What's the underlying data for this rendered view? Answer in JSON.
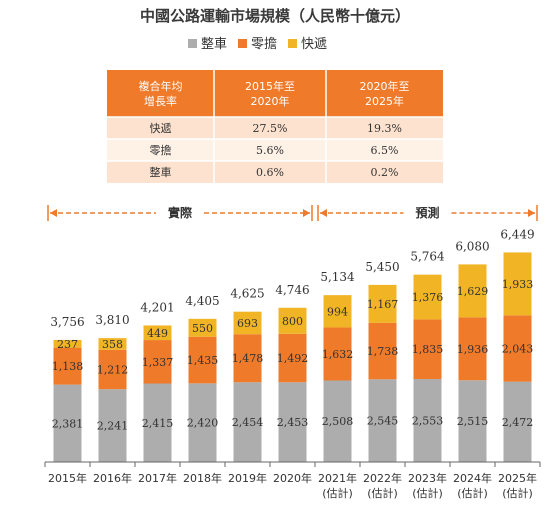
{
  "chart_data": {
    "type": "bar",
    "stacked": true,
    "title": "中國公路運輸市場規模（人民幣十億元）",
    "categories": [
      "2015年",
      "2016年",
      "2017年",
      "2018年",
      "2019年",
      "2020年",
      "2021年\n(估計)",
      "2022年\n(估計)",
      "2023年\n(估計)",
      "2024年\n(估計)",
      "2025年\n(估計)"
    ],
    "series": [
      {
        "name": "整車",
        "color": "#adadad",
        "values": [
          2381,
          2241,
          2415,
          2420,
          2454,
          2453,
          2508,
          2545,
          2553,
          2515,
          2472
        ]
      },
      {
        "name": "零擔",
        "color": "#ee7a2a",
        "values": [
          1138,
          1212,
          1337,
          1435,
          1478,
          1492,
          1632,
          1738,
          1835,
          1936,
          2043
        ]
      },
      {
        "name": "快遞",
        "color": "#f0b424",
        "values": [
          237,
          358,
          449,
          550,
          693,
          800,
          994,
          1167,
          1376,
          1629,
          1933
        ]
      }
    ],
    "totals": [
      3756,
      3810,
      4201,
      4405,
      4625,
      4746,
      5134,
      5450,
      5764,
      6080,
      6449
    ],
    "ylim": [
      0,
      6800
    ],
    "legend_position": "top-center",
    "periods": [
      {
        "label": "實際",
        "from": 0,
        "to": 5
      },
      {
        "label": "預測",
        "from": 6,
        "to": 10
      }
    ],
    "cagr_table": {
      "header": [
        "複合年均增長率",
        "2015年至2020年",
        "2020年至2025年"
      ],
      "rows": [
        {
          "name": "快遞",
          "a": "27.5%",
          "b": "19.3%"
        },
        {
          "name": "零擔",
          "a": "5.6%",
          "b": "6.5%"
        },
        {
          "name": "整車",
          "a": "0.6%",
          "b": "0.2%"
        }
      ]
    },
    "colors": {
      "header_bg": "#ee7a2a",
      "row_odd": "#fde3cf",
      "row_even": "#fef1e6",
      "arrow": "#ee7a2a"
    }
  }
}
